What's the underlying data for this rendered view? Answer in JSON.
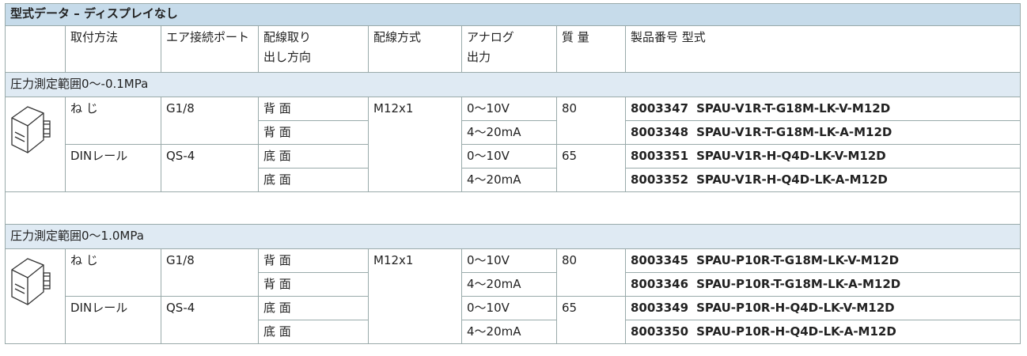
{
  "title": "型式データ – ディスプレイなし",
  "headers": [
    [
      "取付方法"
    ],
    [
      "エア接続ポート"
    ],
    [
      "配線取り",
      "出し方向"
    ],
    [
      "配線方式"
    ],
    [
      "アナログ",
      "出力"
    ],
    [
      "質 量"
    ],
    [
      "製品番号 型式"
    ]
  ],
  "sections": [
    {
      "title": "圧力測定範囲0～-0.1MPa",
      "wiring": "M12x1",
      "groups": [
        {
          "mount": "ね じ",
          "port": "G1/8",
          "weight": "80",
          "rows": [
            {
              "direction": "背 面",
              "output": "0～10V",
              "number": "8003347",
              "model": "SPAU-V1R-T-G18M-LK-V-M12D"
            },
            {
              "direction": "背 面",
              "output": "4～20mA",
              "number": "8003348",
              "model": "SPAU-V1R-T-G18M-LK-A-M12D"
            }
          ]
        },
        {
          "mount": "DINレール",
          "port": "QS-4",
          "weight": "65",
          "rows": [
            {
              "direction": "底 面",
              "output": "0～10V",
              "number": "8003351",
              "model": "SPAU-V1R-H-Q4D-LK-V-M12D"
            },
            {
              "direction": "底 面",
              "output": "4～20mA",
              "number": "8003352",
              "model": "SPAU-V1R-H-Q4D-LK-A-M12D"
            }
          ]
        }
      ]
    },
    {
      "title": "圧力測定範囲0～1.0MPa",
      "wiring": "M12x1",
      "groups": [
        {
          "mount": "ね じ",
          "port": "G1/8",
          "weight": "80",
          "rows": [
            {
              "direction": "背 面",
              "output": "0～10V",
              "number": "8003345",
              "model": "SPAU-P10R-T-G18M-LK-V-M12D"
            },
            {
              "direction": "背 面",
              "output": "4～20mA",
              "number": "8003346",
              "model": "SPAU-P10R-T-G18M-LK-A-M12D"
            }
          ]
        },
        {
          "mount": "DINレール",
          "port": "QS-4",
          "weight": "65",
          "rows": [
            {
              "direction": "底 面",
              "output": "0～10V",
              "number": "8003349",
              "model": "SPAU-P10R-H-Q4D-LK-V-M12D"
            },
            {
              "direction": "底 面",
              "output": "4～20mA",
              "number": "8003350",
              "model": "SPAU-P10R-H-Q4D-LK-A-M12D"
            }
          ]
        }
      ]
    }
  ]
}
